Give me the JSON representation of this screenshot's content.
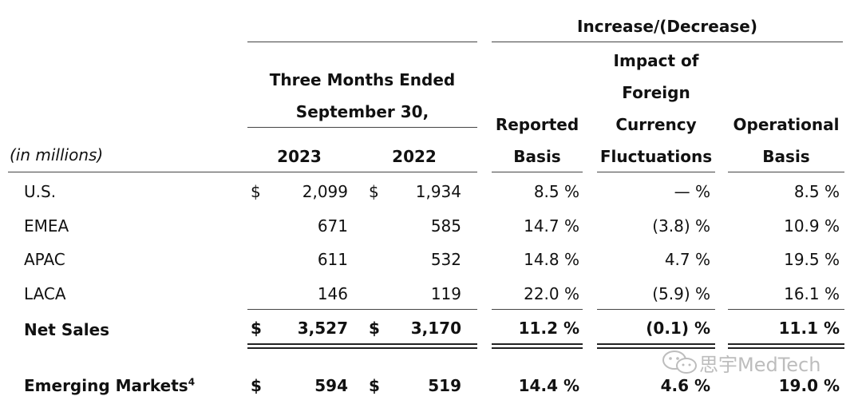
{
  "header": {
    "change_group": "Increase/(Decrease)",
    "period_line1": "Three Months Ended",
    "period_line2": "September 30,",
    "col_2023": "2023",
    "col_2022": "2022",
    "units": "(in millions)",
    "reported_1": "Reported",
    "reported_2": "Basis",
    "impact_1": "Impact of",
    "impact_2": "Foreign",
    "impact_3": "Currency",
    "impact_4": "Fluctuations",
    "operational_1": "Operational",
    "operational_2": "Basis"
  },
  "rows": [
    {
      "label": "U.S.",
      "dollar1": "$",
      "v2023": "2,099",
      "dollar2": "$",
      "v2022": "1,934",
      "reported": "8.5 %",
      "fx": "— %",
      "operational": "8.5 %"
    },
    {
      "label": "EMEA",
      "dollar1": "",
      "v2023": "671",
      "dollar2": "",
      "v2022": "585",
      "reported": "14.7 %",
      "fx": "(3.8) %",
      "operational": "10.9 %"
    },
    {
      "label": "APAC",
      "dollar1": "",
      "v2023": "611",
      "dollar2": "",
      "v2022": "532",
      "reported": "14.8 %",
      "fx": "4.7 %",
      "operational": "19.5 %"
    },
    {
      "label": "LACA",
      "dollar1": "",
      "v2023": "146",
      "dollar2": "",
      "v2022": "119",
      "reported": "22.0 %",
      "fx": "(5.9) %",
      "operational": "16.1 %"
    }
  ],
  "net_sales": {
    "label": "Net Sales",
    "dollar1": "$",
    "v2023": "3,527",
    "dollar2": "$",
    "v2022": "3,170",
    "reported": "11.2 %",
    "fx": "(0.1) %",
    "operational": "11.1 %"
  },
  "emerging": {
    "label": "Emerging Markets",
    "footnote": "4",
    "dollar1": "$",
    "v2023": "594",
    "dollar2": "$",
    "v2022": "519",
    "reported": "14.4 %",
    "fx": "4.6 %",
    "operational": "19.0 %"
  },
  "watermark": {
    "icon": "wechat-icon",
    "text": "思宇MedTech"
  }
}
